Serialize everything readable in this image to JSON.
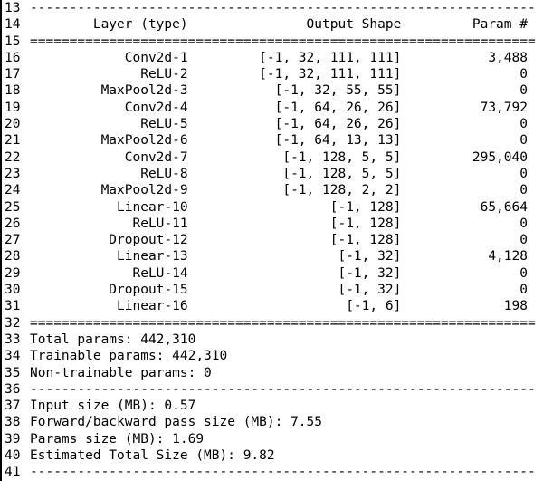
{
  "editor": {
    "start_line_number": 13,
    "end_line_number": 41,
    "text_color": "#000000",
    "background_color": "#ffffff",
    "border_color": "#000000"
  },
  "model_summary": {
    "dash_line": "----------------------------------------------------------------",
    "equals_line": "================================================================",
    "column_format": {
      "layer_width": 20,
      "gap1": 2,
      "shape_width": 25,
      "gap2": 1,
      "param_width": 15
    },
    "header": {
      "layer": "Layer (type)",
      "shape": "Output Shape",
      "param": "Param #"
    },
    "layers": [
      {
        "layer": "Conv2d-1",
        "shape": "[-1, 32, 111, 111]",
        "param": "3,488"
      },
      {
        "layer": "ReLU-2",
        "shape": "[-1, 32, 111, 111]",
        "param": "0"
      },
      {
        "layer": "MaxPool2d-3",
        "shape": "[-1, 32, 55, 55]",
        "param": "0"
      },
      {
        "layer": "Conv2d-4",
        "shape": "[-1, 64, 26, 26]",
        "param": "73,792"
      },
      {
        "layer": "ReLU-5",
        "shape": "[-1, 64, 26, 26]",
        "param": "0"
      },
      {
        "layer": "MaxPool2d-6",
        "shape": "[-1, 64, 13, 13]",
        "param": "0"
      },
      {
        "layer": "Conv2d-7",
        "shape": "[-1, 128, 5, 5]",
        "param": "295,040"
      },
      {
        "layer": "ReLU-8",
        "shape": "[-1, 128, 5, 5]",
        "param": "0"
      },
      {
        "layer": "MaxPool2d-9",
        "shape": "[-1, 128, 2, 2]",
        "param": "0"
      },
      {
        "layer": "Linear-10",
        "shape": "[-1, 128]",
        "param": "65,664"
      },
      {
        "layer": "ReLU-11",
        "shape": "[-1, 128]",
        "param": "0"
      },
      {
        "layer": "Dropout-12",
        "shape": "[-1, 128]",
        "param": "0"
      },
      {
        "layer": "Linear-13",
        "shape": "[-1, 32]",
        "param": "4,128"
      },
      {
        "layer": "ReLU-14",
        "shape": "[-1, 32]",
        "param": "0"
      },
      {
        "layer": "Dropout-15",
        "shape": "[-1, 32]",
        "param": "0"
      },
      {
        "layer": "Linear-16",
        "shape": "[-1, 6]",
        "param": "198"
      }
    ],
    "totals": [
      "Total params: 442,310",
      "Trainable params: 442,310",
      "Non-trainable params: 0"
    ],
    "sizes": [
      "Input size (MB): 0.57",
      "Forward/backward pass size (MB): 7.55",
      "Params size (MB): 1.69",
      "Estimated Total Size (MB): 9.82"
    ]
  }
}
